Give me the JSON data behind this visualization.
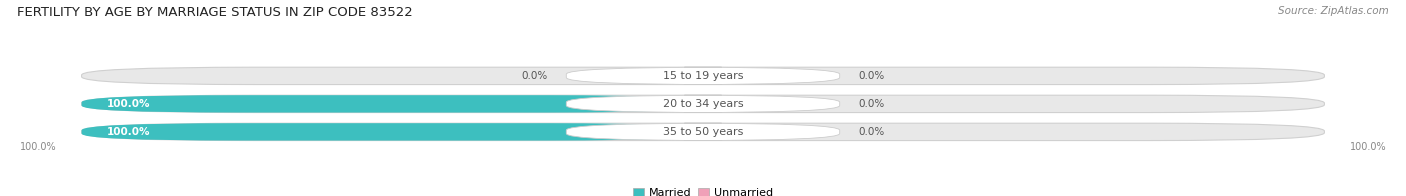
{
  "title": "FERTILITY BY AGE BY MARRIAGE STATUS IN ZIP CODE 83522",
  "source": "Source: ZipAtlas.com",
  "rows": [
    {
      "label": "15 to 19 years",
      "married": 0.0,
      "unmarried": 0.0
    },
    {
      "label": "20 to 34 years",
      "married": 100.0,
      "unmarried": 0.0
    },
    {
      "label": "35 to 50 years",
      "married": 100.0,
      "unmarried": 0.0
    }
  ],
  "married_color": "#3dbfbf",
  "unmarried_color": "#f0a0b8",
  "bar_bg_color": "#e8e8e8",
  "bar_bg_color2": "#f0f0f0",
  "title_fontsize": 9.5,
  "label_fontsize": 8,
  "value_fontsize": 7.5,
  "tick_fontsize": 7,
  "source_fontsize": 7.5,
  "legend_fontsize": 8,
  "axis_label_left": "100.0%",
  "axis_label_right": "100.0%",
  "fig_bg_color": "#ffffff",
  "bar_edge_color": "#cccccc",
  "label_color_light": "#ffffff",
  "label_color_dark": "#555555"
}
